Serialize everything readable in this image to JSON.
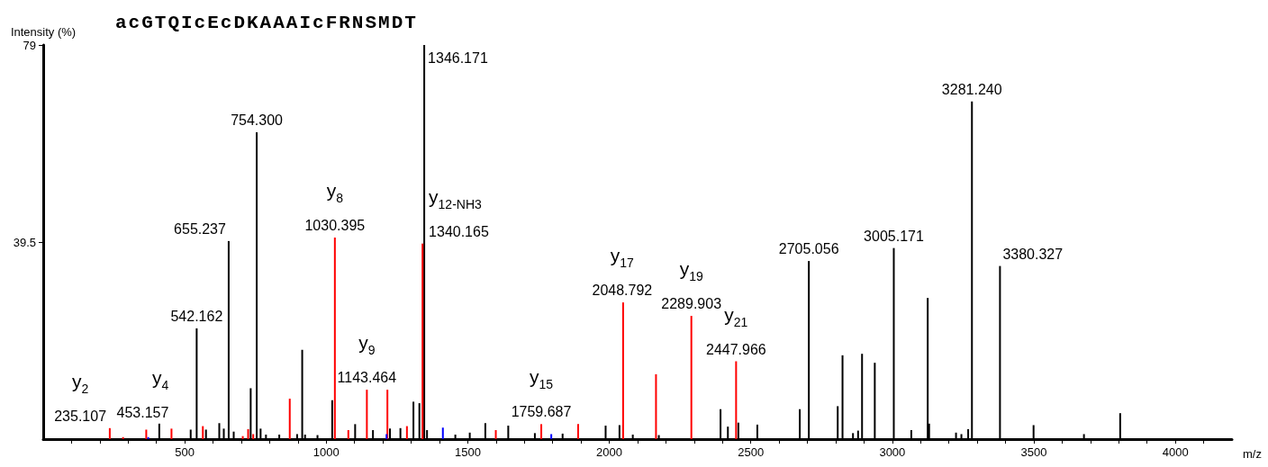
{
  "chart_data": {
    "type": "bar",
    "title": "acGTQIcEcDKAAAIcFRNSMDT",
    "xlabel": "m/z",
    "ylabel": "Intensity (%)",
    "xlim": [
      0,
      4200
    ],
    "xticks": [
      {
        "value": 100,
        "label": null
      },
      {
        "value": 200,
        "label": null
      },
      {
        "value": 300,
        "label": null
      },
      {
        "value": 400,
        "label": null
      },
      500,
      {
        "value": 600,
        "label": null
      },
      {
        "value": 700,
        "label": null
      },
      {
        "value": 800,
        "label": null
      },
      {
        "value": 900,
        "label": null
      },
      1000,
      {
        "value": 1100,
        "label": null
      },
      {
        "value": 1200,
        "label": null
      },
      {
        "value": 1300,
        "label": null
      },
      {
        "value": 1400,
        "label": null
      },
      1500,
      {
        "value": 1600,
        "label": null
      },
      {
        "value": 1700,
        "label": null
      },
      {
        "value": 1800,
        "label": null
      },
      {
        "value": 1900,
        "label": null
      },
      2000,
      {
        "value": 2100,
        "label": null
      },
      {
        "value": 2200,
        "label": null
      },
      {
        "value": 2300,
        "label": null
      },
      {
        "value": 2400,
        "label": null
      },
      2500,
      {
        "value": 2600,
        "label": null
      },
      {
        "value": 2700,
        "label": null
      },
      {
        "value": 2800,
        "label": null
      },
      {
        "value": 2900,
        "label": null
      },
      3000,
      {
        "value": 3100,
        "label": null
      },
      {
        "value": 3200,
        "label": null
      },
      {
        "value": 3300,
        "label": null
      },
      {
        "value": 3400,
        "label": null
      },
      3500,
      {
        "value": 3600,
        "label": null
      },
      {
        "value": 3700,
        "label": null
      },
      {
        "value": 3800,
        "label": null
      },
      {
        "value": 3900,
        "label": null
      },
      4000,
      {
        "value": 4100,
        "label": null
      }
    ],
    "ylim": [
      0,
      79
    ],
    "yticks": [
      39.5,
      79
    ],
    "grid": false,
    "series": [
      {
        "color": "#000000",
        "x": [
          410,
          521,
          542.162,
          575,
          622,
          638,
          655.237,
          673,
          733,
          754.3,
          768,
          787,
          834,
          897,
          915,
          925,
          969,
          1021,
          1102,
          1165,
          1225,
          1262,
          1308,
          1329,
          1346.171,
          1356,
          1456,
          1507,
          1562,
          1643,
          1737,
          1835,
          1987,
          2036,
          2083,
          2175,
          2393,
          2419,
          2456,
          2523,
          2673,
          2705.056,
          2807,
          2824,
          2861,
          2879,
          2893,
          2938,
          3005.171,
          3067,
          3125,
          3130,
          3225,
          3244,
          3268,
          3281.24,
          3380.327,
          3499,
          3677,
          3805
        ],
        "values": [
          3.1,
          1.9,
          22.2,
          1.9,
          3.2,
          2.1,
          39.7,
          1.5,
          10.2,
          61.5,
          2.1,
          0.9,
          0.9,
          1.0,
          17.9,
          0.9,
          0.8,
          7.8,
          3.0,
          1.8,
          2.1,
          2.2,
          7.5,
          7.2,
          79,
          1.8,
          0.9,
          1.3,
          3.2,
          2.7,
          1.2,
          1.1,
          2.7,
          2.8,
          0.9,
          0.8,
          6.0,
          2.5,
          3.3,
          2.9,
          6.0,
          35.7,
          6.6,
          16.8,
          1.2,
          1.7,
          17.1,
          15.3,
          38.3,
          1.8,
          28.3,
          3.1,
          1.3,
          1.0,
          2.0,
          67.7,
          34.7,
          2.8,
          1.0,
          5.2
        ]
      },
      {
        "color": "#ff0000",
        "x": [
          235.107,
          282,
          364,
          453.157,
          564,
          705,
          724,
          742,
          871,
          1030.395,
          1078,
          1143.464,
          1216,
          1285,
          1340.165,
          1599,
          1759.687,
          1890,
          2048.792,
          2165,
          2289.903,
          2447.966
        ],
        "values": [
          2.2,
          0.4,
          1.9,
          2.1,
          2.6,
          0.6,
          2.0,
          1.0,
          8.1,
          40.4,
          1.8,
          9.9,
          9.9,
          2.6,
          39.2,
          1.8,
          3.0,
          3.0,
          27.4,
          13.0,
          24.7,
          15.6
        ]
      },
      {
        "color": "#0000ff",
        "x": [
          371,
          1213,
          1412,
          1795
        ],
        "values": [
          0.4,
          1.0,
          2.3,
          1.0
        ]
      }
    ],
    "annotations": [
      {
        "text": "235.107",
        "x": 235.107,
        "y": 2.2
      },
      {
        "text": "y$_{2}$",
        "x": 235.107,
        "y": 2.2
      },
      {
        "text": "453.157",
        "x": 453.157,
        "y": 2.1
      },
      {
        "text": "y$_{4}$",
        "x": 453.157,
        "y": 2.1
      },
      {
        "text": "542.162",
        "x": 542.162,
        "y": 22.2
      },
      {
        "text": "655.237",
        "x": 655.237,
        "y": 39.7
      },
      {
        "text": "754.300",
        "x": 754.3,
        "y": 61.5
      },
      {
        "text": "1030.395",
        "x": 1030.395,
        "y": 40.4
      },
      {
        "text": "y$_{8}$",
        "x": 1030.395,
        "y": 40.4
      },
      {
        "text": "1143.464",
        "x": 1143.464,
        "y": 9.9
      },
      {
        "text": "y$_{9}$",
        "x": 1143.464,
        "y": 9.9
      },
      {
        "text": "1340.165",
        "x": 1340.165,
        "y": 39.2
      },
      {
        "text": "y$_{12-NH3}$",
        "x": 1340.165,
        "y": 39.2
      },
      {
        "text": "1346.171",
        "x": 1346.171,
        "y": 79
      },
      {
        "text": "1759.687",
        "x": 1759.687,
        "y": 3.0
      },
      {
        "text": "y$_{15}$",
        "x": 1759.687,
        "y": 3.0
      },
      {
        "text": "2048.792",
        "x": 2048.792,
        "y": 27.4
      },
      {
        "text": "y$_{17}$",
        "x": 2048.792,
        "y": 27.4
      },
      {
        "text": "2289.903",
        "x": 2289.903,
        "y": 24.7
      },
      {
        "text": "y$_{19}$",
        "x": 2289.903,
        "y": 24.7
      },
      {
        "text": "2447.966",
        "x": 2447.966,
        "y": 15.6
      },
      {
        "text": "y$_{21}$",
        "x": 2447.966,
        "y": 15.6
      },
      {
        "text": "2705.056",
        "x": 2705.056,
        "y": 35.7
      },
      {
        "text": "3005.171",
        "x": 3005.171,
        "y": 38.3
      },
      {
        "text": "3281.240",
        "x": 3281.24,
        "y": 67.7
      },
      {
        "text": "3380.327",
        "x": 3380.327,
        "y": 34.7
      }
    ]
  }
}
